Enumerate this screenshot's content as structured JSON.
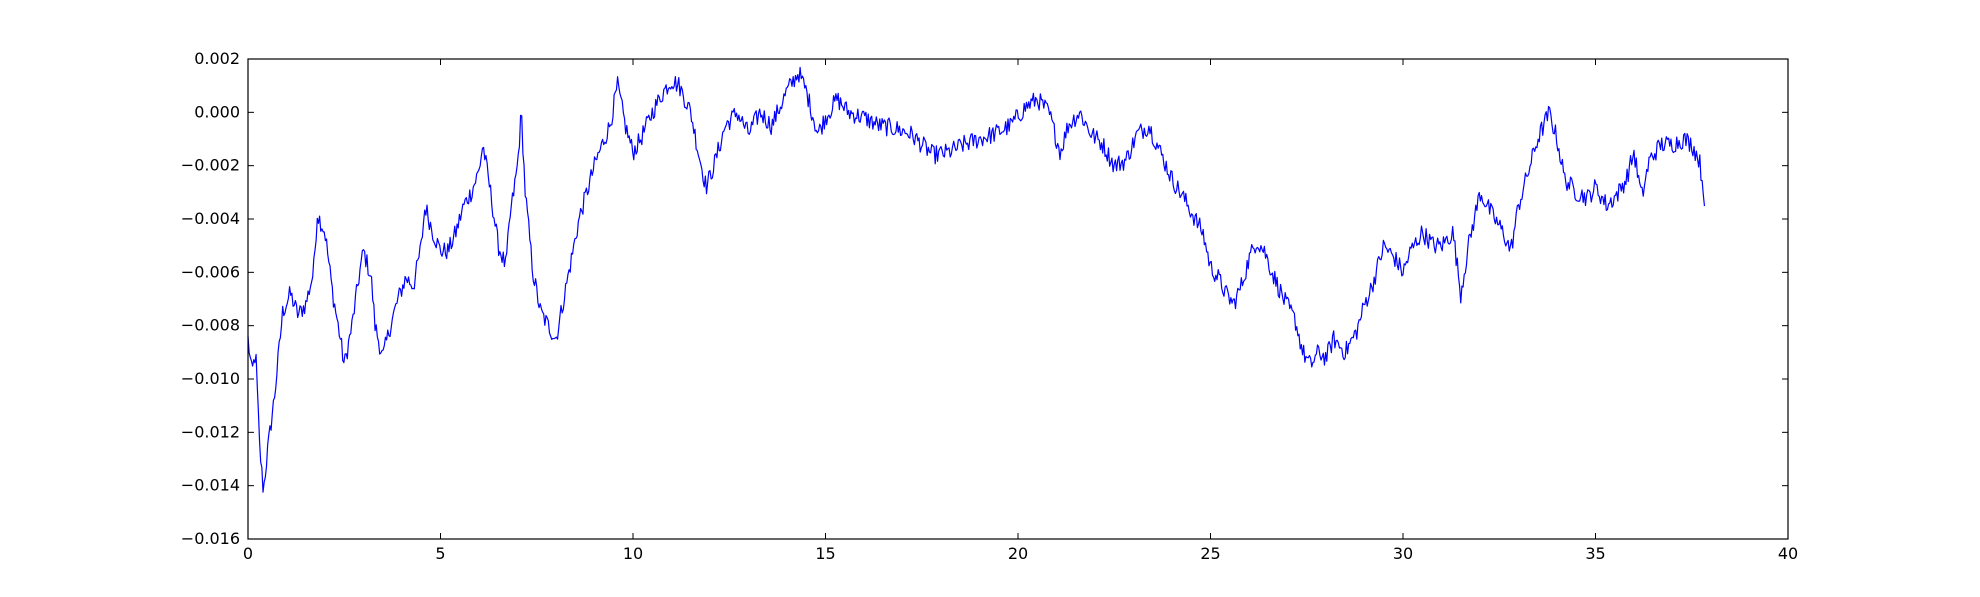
{
  "chart_data": {
    "type": "line",
    "title": "",
    "xlabel": "",
    "ylabel": "",
    "xlim": [
      0,
      40
    ],
    "ylim": [
      -0.016,
      0.002
    ],
    "grid": false,
    "legend": "none",
    "x_ticks": [
      {
        "value": 0,
        "label": "0"
      },
      {
        "value": 5,
        "label": "5"
      },
      {
        "value": 10,
        "label": "10"
      },
      {
        "value": 15,
        "label": "15"
      },
      {
        "value": 20,
        "label": "20"
      },
      {
        "value": 25,
        "label": "25"
      },
      {
        "value": 30,
        "label": "30"
      },
      {
        "value": 35,
        "label": "35"
      },
      {
        "value": 40,
        "label": "40"
      }
    ],
    "y_ticks": [
      {
        "value": 0.002,
        "label": "0.002"
      },
      {
        "value": 0.0,
        "label": "0.000"
      },
      {
        "value": -0.002,
        "label": "−0.002"
      },
      {
        "value": -0.004,
        "label": "−0.004"
      },
      {
        "value": -0.006,
        "label": "−0.006"
      },
      {
        "value": -0.008,
        "label": "−0.008"
      },
      {
        "value": -0.01,
        "label": "−0.010"
      },
      {
        "value": -0.012,
        "label": "−0.012"
      },
      {
        "value": -0.014,
        "label": "−0.014"
      },
      {
        "value": -0.016,
        "label": "−0.016"
      }
    ],
    "series": [
      {
        "color": "#0000ff",
        "points": [
          [
            0.0,
            -0.0085
          ],
          [
            0.1,
            -0.0098
          ],
          [
            0.2,
            -0.009
          ],
          [
            0.3,
            -0.0125
          ],
          [
            0.4,
            -0.0142
          ],
          [
            0.5,
            -0.0128
          ],
          [
            0.7,
            -0.0105
          ],
          [
            0.9,
            -0.0075
          ],
          [
            1.1,
            -0.0068
          ],
          [
            1.3,
            -0.0076
          ],
          [
            1.5,
            -0.0072
          ],
          [
            1.7,
            -0.006
          ],
          [
            1.8,
            -0.0038
          ],
          [
            2.0,
            -0.0045
          ],
          [
            2.2,
            -0.0068
          ],
          [
            2.4,
            -0.0085
          ],
          [
            2.5,
            -0.0095
          ],
          [
            2.7,
            -0.008
          ],
          [
            2.9,
            -0.006
          ],
          [
            3.0,
            -0.0052
          ],
          [
            3.2,
            -0.0062
          ],
          [
            3.3,
            -0.008
          ],
          [
            3.5,
            -0.0092
          ],
          [
            3.7,
            -0.008
          ],
          [
            3.9,
            -0.007
          ],
          [
            4.1,
            -0.0062
          ],
          [
            4.3,
            -0.0065
          ],
          [
            4.5,
            -0.005
          ],
          [
            4.6,
            -0.0035
          ],
          [
            4.8,
            -0.0045
          ],
          [
            5.0,
            -0.0052
          ],
          [
            5.2,
            -0.0052
          ],
          [
            5.4,
            -0.0045
          ],
          [
            5.6,
            -0.0035
          ],
          [
            5.8,
            -0.003
          ],
          [
            6.0,
            -0.0022
          ],
          [
            6.1,
            -0.0012
          ],
          [
            6.3,
            -0.003
          ],
          [
            6.5,
            -0.005
          ],
          [
            6.7,
            -0.0058
          ],
          [
            6.8,
            -0.004
          ],
          [
            7.0,
            -0.002
          ],
          [
            7.1,
            0.0
          ],
          [
            7.2,
            -0.003
          ],
          [
            7.4,
            -0.006
          ],
          [
            7.6,
            -0.0075
          ],
          [
            7.8,
            -0.008
          ],
          [
            8.0,
            -0.0085
          ],
          [
            8.2,
            -0.007
          ],
          [
            8.4,
            -0.0055
          ],
          [
            8.6,
            -0.004
          ],
          [
            8.8,
            -0.003
          ],
          [
            9.0,
            -0.002
          ],
          [
            9.2,
            -0.0012
          ],
          [
            9.4,
            -0.0005
          ],
          [
            9.6,
            0.001
          ],
          [
            9.8,
            -0.0005
          ],
          [
            10.0,
            -0.0015
          ],
          [
            10.2,
            -0.001
          ],
          [
            10.5,
            0.0
          ],
          [
            10.8,
            0.0008
          ],
          [
            11.0,
            0.0012
          ],
          [
            11.2,
            0.001
          ],
          [
            11.5,
            0.0
          ],
          [
            11.7,
            -0.0015
          ],
          [
            11.9,
            -0.0028
          ],
          [
            12.1,
            -0.002
          ],
          [
            12.4,
            -0.0005
          ],
          [
            12.7,
            0.0
          ],
          [
            13.0,
            -0.0008
          ],
          [
            13.3,
            0.0
          ],
          [
            13.6,
            -0.0005
          ],
          [
            14.0,
            0.0008
          ],
          [
            14.3,
            0.0015
          ],
          [
            14.5,
            0.0008
          ],
          [
            14.8,
            -0.0008
          ],
          [
            15.0,
            -0.0002
          ],
          [
            15.3,
            0.0005
          ],
          [
            15.6,
            0.0
          ],
          [
            16.0,
            -0.0002
          ],
          [
            16.4,
            -0.0005
          ],
          [
            16.8,
            -0.0006
          ],
          [
            17.2,
            -0.0008
          ],
          [
            17.5,
            -0.0012
          ],
          [
            17.8,
            -0.0016
          ],
          [
            18.2,
            -0.0015
          ],
          [
            18.6,
            -0.0012
          ],
          [
            19.0,
            -0.001
          ],
          [
            19.4,
            -0.0008
          ],
          [
            19.8,
            -0.0005
          ],
          [
            20.2,
            0.0002
          ],
          [
            20.5,
            0.0005
          ],
          [
            20.8,
            0.0
          ],
          [
            21.1,
            -0.0015
          ],
          [
            21.3,
            -0.0005
          ],
          [
            21.6,
            0.0
          ],
          [
            21.9,
            -0.0008
          ],
          [
            22.2,
            -0.0012
          ],
          [
            22.5,
            -0.002
          ],
          [
            22.8,
            -0.0018
          ],
          [
            23.1,
            -0.0008
          ],
          [
            23.4,
            -0.0005
          ],
          [
            23.7,
            -0.0015
          ],
          [
            24.0,
            -0.0025
          ],
          [
            24.3,
            -0.0032
          ],
          [
            24.6,
            -0.004
          ],
          [
            24.8,
            -0.0045
          ],
          [
            25.0,
            -0.0058
          ],
          [
            25.2,
            -0.0062
          ],
          [
            25.4,
            -0.0068
          ],
          [
            25.6,
            -0.0072
          ],
          [
            25.8,
            -0.0065
          ],
          [
            26.0,
            -0.0055
          ],
          [
            26.2,
            -0.0048
          ],
          [
            26.4,
            -0.0052
          ],
          [
            26.6,
            -0.006
          ],
          [
            26.9,
            -0.007
          ],
          [
            27.2,
            -0.0078
          ],
          [
            27.4,
            -0.009
          ],
          [
            27.6,
            -0.0095
          ],
          [
            27.8,
            -0.009
          ],
          [
            28.0,
            -0.0092
          ],
          [
            28.2,
            -0.0085
          ],
          [
            28.5,
            -0.009
          ],
          [
            28.8,
            -0.0082
          ],
          [
            29.0,
            -0.0072
          ],
          [
            29.2,
            -0.0065
          ],
          [
            29.5,
            -0.005
          ],
          [
            29.8,
            -0.0055
          ],
          [
            30.0,
            -0.006
          ],
          [
            30.2,
            -0.0052
          ],
          [
            30.5,
            -0.0045
          ],
          [
            30.8,
            -0.005
          ],
          [
            31.0,
            -0.005
          ],
          [
            31.3,
            -0.0045
          ],
          [
            31.5,
            -0.0068
          ],
          [
            31.7,
            -0.005
          ],
          [
            32.0,
            -0.003
          ],
          [
            32.3,
            -0.0038
          ],
          [
            32.6,
            -0.0045
          ],
          [
            32.8,
            -0.0052
          ],
          [
            33.0,
            -0.0035
          ],
          [
            33.2,
            -0.0025
          ],
          [
            33.5,
            -0.001
          ],
          [
            33.8,
            0.0
          ],
          [
            34.0,
            -0.001
          ],
          [
            34.2,
            -0.0025
          ],
          [
            34.5,
            -0.003
          ],
          [
            34.8,
            -0.0032
          ],
          [
            35.0,
            -0.0028
          ],
          [
            35.3,
            -0.0035
          ],
          [
            35.6,
            -0.003
          ],
          [
            35.8,
            -0.0025
          ],
          [
            36.0,
            -0.0015
          ],
          [
            36.2,
            -0.0032
          ],
          [
            36.4,
            -0.0018
          ],
          [
            36.7,
            -0.0012
          ],
          [
            37.0,
            -0.0012
          ],
          [
            37.3,
            -0.001
          ],
          [
            37.5,
            -0.0012
          ],
          [
            37.7,
            -0.0018
          ],
          [
            37.85,
            -0.0034
          ]
        ]
      }
    ]
  }
}
